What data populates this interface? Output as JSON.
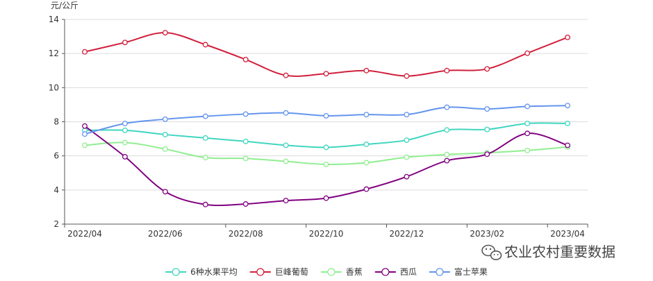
{
  "chart_data": {
    "type": "line",
    "title": "",
    "ylabel": "元/公斤",
    "xlabel": "",
    "ylim": [
      2,
      14
    ],
    "yticks": [
      2,
      4,
      6,
      8,
      10,
      12,
      14
    ],
    "x_tick_labels": [
      "2022/04",
      "2022/06",
      "2022/08",
      "2022/10",
      "2022/12",
      "2023/02",
      "2023/04"
    ],
    "x_points": [
      "2022/04",
      "2022/05",
      "2022/06",
      "2022/07",
      "2022/08",
      "2022/09",
      "2022/10",
      "2022/11",
      "2022/12",
      "2023/01",
      "2023/02",
      "2023/03",
      "2023/04"
    ],
    "grid": true,
    "legend_position": "bottom",
    "series": [
      {
        "name": "6种水果平均",
        "color": "#3fd6c0",
        "values": [
          7.5,
          7.5,
          7.25,
          7.05,
          6.85,
          6.62,
          6.5,
          6.68,
          6.92,
          7.52,
          7.55,
          7.9,
          7.9
        ]
      },
      {
        "name": "巨峰葡萄",
        "color": "#d21f3c",
        "values": [
          12.1,
          12.65,
          13.22,
          12.52,
          11.65,
          10.72,
          10.82,
          11.0,
          10.68,
          11.0,
          11.1,
          12.02,
          12.95
        ]
      },
      {
        "name": "香蕉",
        "color": "#90ee90",
        "values": [
          6.62,
          6.78,
          6.4,
          5.9,
          5.85,
          5.68,
          5.5,
          5.6,
          5.92,
          6.08,
          6.18,
          6.32,
          6.52
        ]
      },
      {
        "name": "西瓜",
        "color": "#800080",
        "values": [
          7.75,
          5.95,
          3.9,
          3.15,
          3.18,
          3.38,
          3.52,
          4.05,
          4.78,
          5.72,
          6.1,
          7.32,
          6.62
        ]
      },
      {
        "name": "富士苹果",
        "color": "#6495ed",
        "values": [
          7.28,
          7.9,
          8.15,
          8.32,
          8.45,
          8.52,
          8.35,
          8.42,
          8.42,
          8.85,
          8.75,
          8.9,
          8.95
        ]
      }
    ]
  },
  "watermark": {
    "text": "农业农村重要数据",
    "icon": "wechat-icon"
  }
}
